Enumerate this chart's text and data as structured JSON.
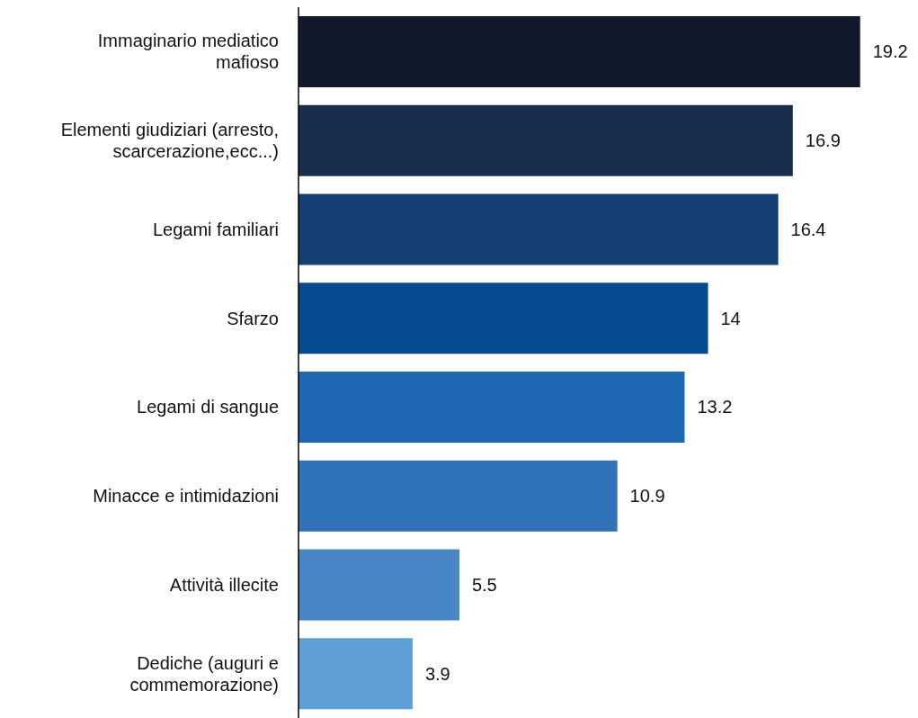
{
  "chart_data": {
    "type": "bar",
    "orientation": "horizontal",
    "categories": [
      "Immaginario mediatico mafioso",
      "Elementi giudiziari (arresto, scarcerazione,ecc...)",
      "Legami familiari",
      "Sfarzo",
      "Legami di sangue",
      "Minacce e intimidazioni",
      "Attività illecite",
      "Dediche (auguri e commemorazione)"
    ],
    "values": [
      19.2,
      16.9,
      16.4,
      14,
      13.2,
      10.9,
      5.5,
      3.9
    ],
    "colors": [
      "#111a2c",
      "#1b2d4f",
      "#153f72",
      "#064b92",
      "#1f68b3",
      "#2f73b8",
      "#4787c7",
      "#5e9fd6"
    ],
    "data_labels": true
  }
}
